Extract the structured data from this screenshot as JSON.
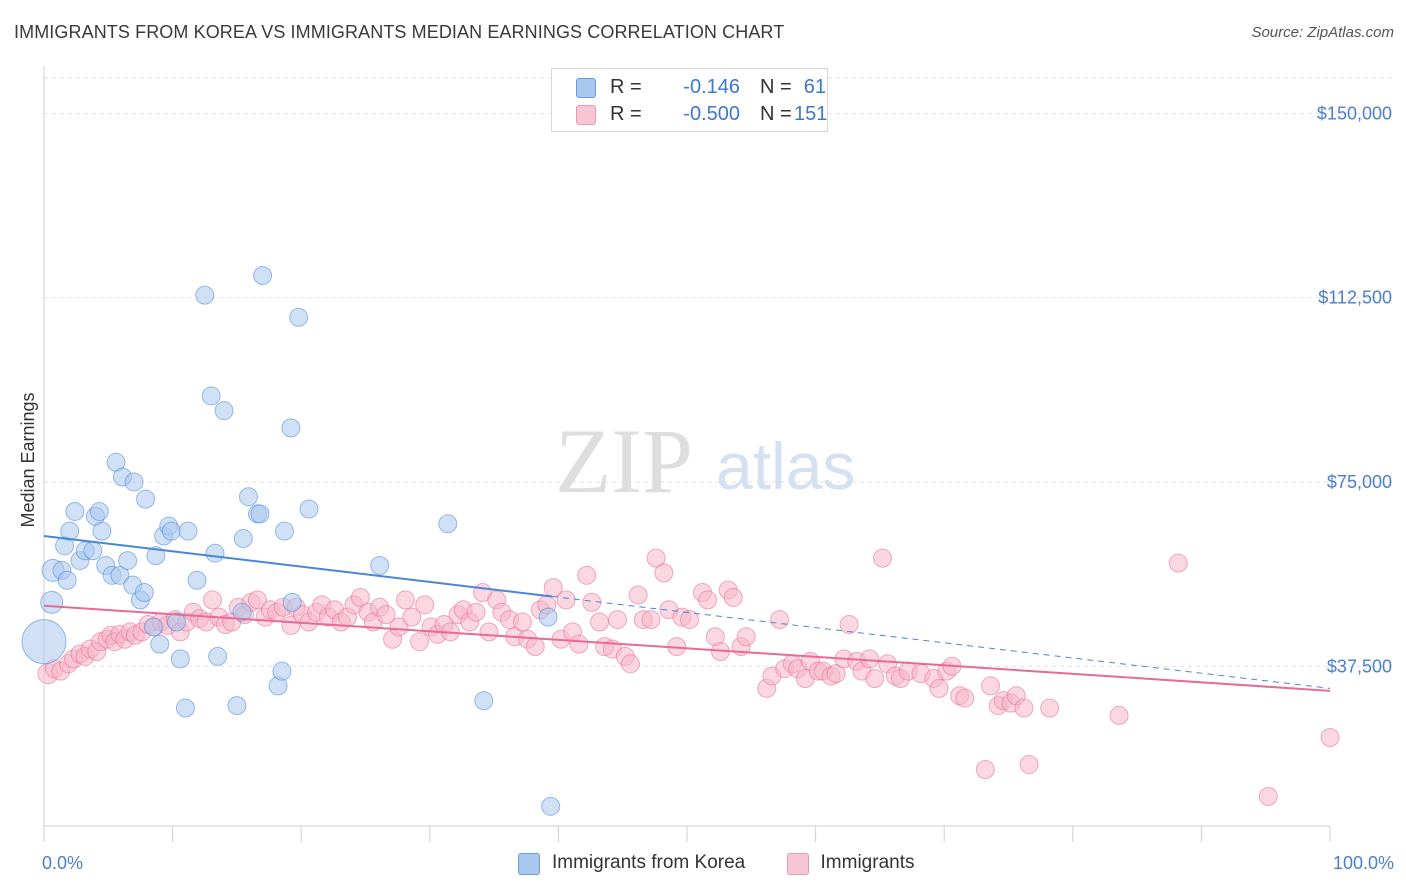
{
  "header": {
    "title": "IMMIGRANTS FROM KOREA VS IMMIGRANTS MEDIAN EARNINGS CORRELATION CHART",
    "source": "Source: ZipAtlas.com"
  },
  "watermark": {
    "zip": "ZIP",
    "atlas": "atlas"
  },
  "legend_top": {
    "rows": [
      {
        "r_label": "R =",
        "r_value": "-0.146",
        "n_label": "N =",
        "n_value": "61",
        "color": "#a9c8ef"
      },
      {
        "r_label": "R =",
        "r_value": "-0.500",
        "n_label": "N =",
        "n_value": "151",
        "color": "#f6b6c9"
      }
    ]
  },
  "legend_bottom": {
    "items": [
      {
        "label": "Immigrants from Korea",
        "color": "#a9c8ef"
      },
      {
        "label": "Immigrants",
        "color": "#f6b6c9"
      }
    ]
  },
  "chart_data": {
    "type": "scatter",
    "title": "IMMIGRANTS FROM KOREA VS IMMIGRANTS MEDIAN EARNINGS CORRELATION CHART",
    "xlabel": "",
    "ylabel": "Median Earnings",
    "xlim": [
      0,
      100
    ],
    "ylim": [
      5000,
      158000
    ],
    "x_tick_labels": [
      "0.0%",
      "100.0%"
    ],
    "y_ticks": [
      37500,
      75000,
      112500,
      150000
    ],
    "y_tick_labels": [
      "$37,500",
      "$75,000",
      "$112,500",
      "$150,000"
    ],
    "grid": "horizontal dashed",
    "legend_position": "top-center",
    "series": [
      {
        "name": "Immigrants from Korea",
        "color": "#4a86d8",
        "fill": "#a9c8ef",
        "trend": {
          "x": [
            0,
            39.5
          ],
          "y": [
            64000,
            51700
          ],
          "dashed_to": [
            100,
            33000
          ]
        },
        "points": [
          [
            0,
            42500,
            22
          ],
          [
            0.6,
            50500,
            11
          ],
          [
            0.7,
            57000,
            11
          ],
          [
            1.4,
            57000,
            9
          ],
          [
            1.6,
            62000,
            9
          ],
          [
            1.8,
            55000,
            9
          ],
          [
            2.0,
            65000,
            9
          ],
          [
            2.4,
            69000,
            9
          ],
          [
            2.8,
            59000,
            9
          ],
          [
            3.2,
            61000,
            9
          ],
          [
            3.8,
            61000,
            9
          ],
          [
            4.0,
            68000,
            9
          ],
          [
            4.3,
            69000,
            9
          ],
          [
            4.5,
            65000,
            9
          ],
          [
            4.8,
            58000,
            9
          ],
          [
            5.3,
            56000,
            9
          ],
          [
            5.6,
            79000,
            9
          ],
          [
            5.9,
            56000,
            9
          ],
          [
            6.1,
            76000,
            9
          ],
          [
            6.5,
            59000,
            9
          ],
          [
            6.9,
            54000,
            9
          ],
          [
            7.0,
            75000,
            9
          ],
          [
            7.5,
            51000,
            9
          ],
          [
            7.8,
            52500,
            9
          ],
          [
            7.9,
            71500,
            9
          ],
          [
            8.5,
            45500,
            9
          ],
          [
            8.7,
            60000,
            9
          ],
          [
            9.0,
            42000,
            9
          ],
          [
            9.3,
            64000,
            9
          ],
          [
            9.7,
            66000,
            9
          ],
          [
            9.9,
            65000,
            9
          ],
          [
            10.3,
            46500,
            9
          ],
          [
            10.6,
            39000,
            9
          ],
          [
            11.0,
            29000,
            9
          ],
          [
            11.2,
            65000,
            9
          ],
          [
            11.9,
            55000,
            9
          ],
          [
            12.5,
            113000,
            9
          ],
          [
            13.0,
            92500,
            9
          ],
          [
            13.3,
            60500,
            9
          ],
          [
            13.5,
            39500,
            9
          ],
          [
            14.0,
            89500,
            9
          ],
          [
            15.0,
            29500,
            9
          ],
          [
            15.4,
            48500,
            9
          ],
          [
            15.5,
            63500,
            9
          ],
          [
            15.9,
            72000,
            9
          ],
          [
            16.6,
            68500,
            9
          ],
          [
            16.8,
            68500,
            9
          ],
          [
            17.0,
            117000,
            9
          ],
          [
            18.2,
            33500,
            9
          ],
          [
            18.5,
            36500,
            9
          ],
          [
            18.7,
            65000,
            9
          ],
          [
            19.2,
            86000,
            9
          ],
          [
            19.3,
            50500,
            9
          ],
          [
            19.8,
            108500,
            9
          ],
          [
            20.6,
            69500,
            9
          ],
          [
            26.1,
            58000,
            9
          ],
          [
            31.4,
            66500,
            9
          ],
          [
            34.2,
            30500,
            9
          ],
          [
            39.2,
            47500,
            9
          ],
          [
            39.4,
            9000,
            9
          ]
        ]
      },
      {
        "name": "Immigrants",
        "color": "#e86a96",
        "fill": "#f6b6c9",
        "trend": {
          "x": [
            0,
            100
          ],
          "y": [
            49800,
            32500
          ]
        },
        "points": [
          [
            0.3,
            36000,
            10
          ],
          [
            0.8,
            37000,
            9
          ],
          [
            1.3,
            36500,
            9
          ],
          [
            1.9,
            38000,
            9
          ],
          [
            2.3,
            39000,
            9
          ],
          [
            2.8,
            40000,
            9
          ],
          [
            3.2,
            39500,
            9
          ],
          [
            3.6,
            41000,
            9
          ],
          [
            4.1,
            40500,
            9
          ],
          [
            4.4,
            42500,
            9
          ],
          [
            4.9,
            43000,
            9
          ],
          [
            5.2,
            43800,
            9
          ],
          [
            5.5,
            42500,
            9
          ],
          [
            5.9,
            44000,
            9
          ],
          [
            6.3,
            43000,
            9
          ],
          [
            6.7,
            44500,
            9
          ],
          [
            7.1,
            43800,
            9
          ],
          [
            7.6,
            44500,
            9
          ],
          [
            8.1,
            46000,
            9
          ],
          [
            8.6,
            45500,
            9
          ],
          [
            9.1,
            46500,
            9
          ],
          [
            9.6,
            45800,
            9
          ],
          [
            10.2,
            47000,
            9
          ],
          [
            10.6,
            44500,
            9
          ],
          [
            11.1,
            46500,
            9
          ],
          [
            11.6,
            48500,
            9
          ],
          [
            12.1,
            47200,
            9
          ],
          [
            12.6,
            46500,
            9
          ],
          [
            13.1,
            51000,
            9
          ],
          [
            13.6,
            47500,
            9
          ],
          [
            14.1,
            46000,
            9
          ],
          [
            14.6,
            46500,
            9
          ],
          [
            15.1,
            49500,
            9
          ],
          [
            15.6,
            48000,
            9
          ],
          [
            16.1,
            50500,
            9
          ],
          [
            16.6,
            51000,
            9
          ],
          [
            17.2,
            47500,
            9
          ],
          [
            17.6,
            49000,
            9
          ],
          [
            18.1,
            48500,
            9
          ],
          [
            18.6,
            49500,
            9
          ],
          [
            19.2,
            45800,
            9
          ],
          [
            19.6,
            49500,
            9
          ],
          [
            20.1,
            48000,
            9
          ],
          [
            20.6,
            46500,
            9
          ],
          [
            21.2,
            48500,
            9
          ],
          [
            21.6,
            50000,
            9
          ],
          [
            22.1,
            47500,
            9
          ],
          [
            22.6,
            49000,
            9
          ],
          [
            23.1,
            46500,
            9
          ],
          [
            23.6,
            47500,
            9
          ],
          [
            24.1,
            50000,
            9
          ],
          [
            24.6,
            51500,
            9
          ],
          [
            25.2,
            48500,
            9
          ],
          [
            25.6,
            46500,
            9
          ],
          [
            26.1,
            49500,
            9
          ],
          [
            26.6,
            48000,
            9
          ],
          [
            27.1,
            43000,
            9
          ],
          [
            27.6,
            45500,
            9
          ],
          [
            28.1,
            51000,
            9
          ],
          [
            28.6,
            47500,
            9
          ],
          [
            29.2,
            42500,
            9
          ],
          [
            29.6,
            50000,
            9
          ],
          [
            30.1,
            45500,
            9
          ],
          [
            30.6,
            44000,
            9
          ],
          [
            31.1,
            46000,
            9
          ],
          [
            31.6,
            44500,
            9
          ],
          [
            32.2,
            48000,
            9
          ],
          [
            32.6,
            49000,
            9
          ],
          [
            33.1,
            46500,
            9
          ],
          [
            33.6,
            48500,
            9
          ],
          [
            34.1,
            52500,
            9
          ],
          [
            34.6,
            44500,
            9
          ],
          [
            35.2,
            51000,
            9
          ],
          [
            35.6,
            48500,
            9
          ],
          [
            36.2,
            47000,
            9
          ],
          [
            36.6,
            43500,
            9
          ],
          [
            37.2,
            46500,
            9
          ],
          [
            37.6,
            43000,
            9
          ],
          [
            38.2,
            41500,
            9
          ],
          [
            38.6,
            49000,
            9
          ],
          [
            39.1,
            50000,
            9
          ],
          [
            39.6,
            53500,
            9
          ],
          [
            40.2,
            43000,
            9
          ],
          [
            40.6,
            51000,
            9
          ],
          [
            41.1,
            44500,
            9
          ],
          [
            41.6,
            42000,
            9
          ],
          [
            42.2,
            56000,
            9
          ],
          [
            42.6,
            50500,
            9
          ],
          [
            43.2,
            46500,
            9
          ],
          [
            43.6,
            41500,
            9
          ],
          [
            44.2,
            41000,
            9
          ],
          [
            44.6,
            47000,
            9
          ],
          [
            45.2,
            39500,
            9
          ],
          [
            45.6,
            38000,
            9
          ],
          [
            46.2,
            52000,
            9
          ],
          [
            46.6,
            47000,
            9
          ],
          [
            47.2,
            47000,
            9
          ],
          [
            47.6,
            59500,
            9
          ],
          [
            48.2,
            56500,
            9
          ],
          [
            48.6,
            49000,
            9
          ],
          [
            49.2,
            41500,
            9
          ],
          [
            49.6,
            47500,
            9
          ],
          [
            50.2,
            47000,
            9
          ],
          [
            51.2,
            52500,
            9
          ],
          [
            51.6,
            51000,
            9
          ],
          [
            52.2,
            43500,
            9
          ],
          [
            52.6,
            40500,
            9
          ],
          [
            53.2,
            53000,
            9
          ],
          [
            53.6,
            51500,
            9
          ],
          [
            54.2,
            41500,
            9
          ],
          [
            54.6,
            43500,
            9
          ],
          [
            56.2,
            33000,
            9
          ],
          [
            56.6,
            35500,
            9
          ],
          [
            57.2,
            47000,
            9
          ],
          [
            57.6,
            37000,
            9
          ],
          [
            58.2,
            38000,
            9
          ],
          [
            58.6,
            37000,
            9
          ],
          [
            59.2,
            35000,
            9
          ],
          [
            59.6,
            38500,
            9
          ],
          [
            60.2,
            36500,
            9
          ],
          [
            60.6,
            36500,
            9
          ],
          [
            61.2,
            35500,
            9
          ],
          [
            61.6,
            36000,
            9
          ],
          [
            62.2,
            39000,
            9
          ],
          [
            62.6,
            46000,
            9
          ],
          [
            63.2,
            38500,
            9
          ],
          [
            63.6,
            36500,
            9
          ],
          [
            64.2,
            39000,
            9
          ],
          [
            64.6,
            35000,
            9
          ],
          [
            65.2,
            59500,
            9
          ],
          [
            65.6,
            38000,
            9
          ],
          [
            66.2,
            35500,
            9
          ],
          [
            66.6,
            35000,
            9
          ],
          [
            67.2,
            36500,
            9
          ],
          [
            68.2,
            36000,
            9
          ],
          [
            69.2,
            35000,
            9
          ],
          [
            69.6,
            33000,
            9
          ],
          [
            70.2,
            36500,
            9
          ],
          [
            70.6,
            37500,
            9
          ],
          [
            71.2,
            31500,
            9
          ],
          [
            71.6,
            31000,
            9
          ],
          [
            73.2,
            16500,
            9
          ],
          [
            73.6,
            33500,
            9
          ],
          [
            74.2,
            29500,
            9
          ],
          [
            74.6,
            30500,
            9
          ],
          [
            75.2,
            30000,
            9
          ],
          [
            75.6,
            31500,
            9
          ],
          [
            76.2,
            29000,
            9
          ],
          [
            76.6,
            17500,
            9
          ],
          [
            78.2,
            29000,
            9
          ],
          [
            83.6,
            27500,
            9
          ],
          [
            88.2,
            58500,
            9
          ],
          [
            95.2,
            11000,
            9
          ],
          [
            100,
            23000,
            9
          ]
        ]
      }
    ]
  }
}
